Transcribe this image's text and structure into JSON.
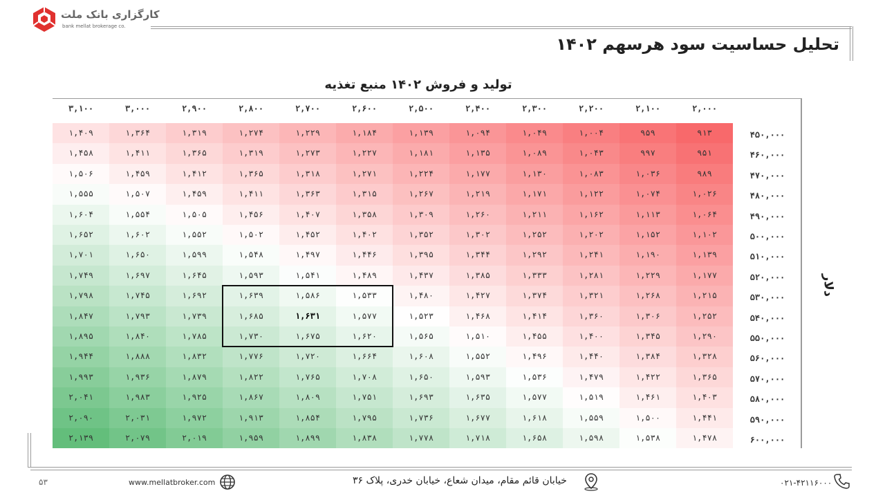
{
  "brand": {
    "name_fa": "کارگزاری بانک ملت",
    "name_en": "bank mellat brokerage co."
  },
  "page_title": "تحلیل حساسیت سود هرسهم ۱۴۰۲",
  "table_title": "تولید و فروش ۱۴۰۲ منبع تغذیه",
  "axis_label": "دلار",
  "columns": [
    "۲,۰۰۰",
    "۲,۱۰۰",
    "۲,۲۰۰",
    "۲,۳۰۰",
    "۲,۴۰۰",
    "۲,۵۰۰",
    "۲,۶۰۰",
    "۲,۷۰۰",
    "۲,۸۰۰",
    "۲,۹۰۰",
    "۳,۰۰۰",
    "۳,۱۰۰"
  ],
  "rows": [
    "۴۵۰,۰۰۰",
    "۴۶۰,۰۰۰",
    "۴۷۰,۰۰۰",
    "۴۸۰,۰۰۰",
    "۴۹۰,۰۰۰",
    "۵۰۰,۰۰۰",
    "۵۱۰,۰۰۰",
    "۵۲۰,۰۰۰",
    "۵۳۰,۰۰۰",
    "۵۴۰,۰۰۰",
    "۵۵۰,۰۰۰",
    "۵۶۰,۰۰۰",
    "۵۷۰,۰۰۰",
    "۵۸۰,۰۰۰",
    "۵۹۰,۰۰۰",
    "۶۰۰,۰۰۰"
  ],
  "values": [
    [
      "۹۱۳",
      "۹۵۹",
      "۱,۰۰۴",
      "۱,۰۴۹",
      "۱,۰۹۴",
      "۱,۱۳۹",
      "۱,۱۸۴",
      "۱,۲۲۹",
      "۱,۲۷۴",
      "۱,۳۱۹",
      "۱,۳۶۴",
      "۱,۴۰۹"
    ],
    [
      "۹۵۱",
      "۹۹۷",
      "۱,۰۴۳",
      "۱,۰۸۹",
      "۱,۱۳۵",
      "۱,۱۸۱",
      "۱,۲۲۷",
      "۱,۲۷۳",
      "۱,۳۱۹",
      "۱,۳۶۵",
      "۱,۴۱۱",
      "۱,۴۵۸"
    ],
    [
      "۹۸۹",
      "۱,۰۳۶",
      "۱,۰۸۳",
      "۱,۱۳۰",
      "۱,۱۷۷",
      "۱,۲۲۴",
      "۱,۲۷۱",
      "۱,۳۱۸",
      "۱,۳۶۵",
      "۱,۴۱۲",
      "۱,۴۵۹",
      "۱,۵۰۶"
    ],
    [
      "۱,۰۲۶",
      "۱,۰۷۴",
      "۱,۱۲۲",
      "۱,۱۷۱",
      "۱,۲۱۹",
      "۱,۲۶۷",
      "۱,۳۱۵",
      "۱,۳۶۳",
      "۱,۴۱۱",
      "۱,۴۵۹",
      "۱,۵۰۷",
      "۱,۵۵۵"
    ],
    [
      "۱,۰۶۴",
      "۱,۱۱۳",
      "۱,۱۶۲",
      "۱,۲۱۱",
      "۱,۲۶۰",
      "۱,۳۰۹",
      "۱,۳۵۸",
      "۱,۴۰۷",
      "۱,۴۵۶",
      "۱,۵۰۵",
      "۱,۵۵۴",
      "۱,۶۰۴"
    ],
    [
      "۱,۱۰۲",
      "۱,۱۵۲",
      "۱,۲۰۲",
      "۱,۲۵۲",
      "۱,۳۰۲",
      "۱,۳۵۲",
      "۱,۴۰۲",
      "۱,۴۵۲",
      "۱,۵۰۲",
      "۱,۵۵۲",
      "۱,۶۰۲",
      "۱,۶۵۲"
    ],
    [
      "۱,۱۳۹",
      "۱,۱۹۰",
      "۱,۲۴۱",
      "۱,۲۹۲",
      "۱,۳۴۴",
      "۱,۳۹۵",
      "۱,۴۴۶",
      "۱,۴۹۷",
      "۱,۵۴۸",
      "۱,۵۹۹",
      "۱,۶۵۰",
      "۱,۷۰۱"
    ],
    [
      "۱,۱۷۷",
      "۱,۲۲۹",
      "۱,۲۸۱",
      "۱,۳۳۳",
      "۱,۳۸۵",
      "۱,۴۳۷",
      "۱,۴۸۹",
      "۱,۵۴۱",
      "۱,۵۹۳",
      "۱,۶۴۵",
      "۱,۶۹۷",
      "۱,۷۴۹"
    ],
    [
      "۱,۲۱۵",
      "۱,۲۶۸",
      "۱,۳۲۱",
      "۱,۳۷۴",
      "۱,۴۲۷",
      "۱,۴۸۰",
      "۱,۵۳۳",
      "۱,۵۸۶",
      "۱,۶۳۹",
      "۱,۶۹۲",
      "۱,۷۴۵",
      "۱,۷۹۸"
    ],
    [
      "۱,۲۵۲",
      "۱,۳۰۶",
      "۱,۳۶۰",
      "۱,۴۱۴",
      "۱,۴۶۸",
      "۱,۵۲۳",
      "۱,۵۷۷",
      "۱,۶۳۱",
      "۱,۶۸۵",
      "۱,۷۳۹",
      "۱,۷۹۳",
      "۱,۸۴۷"
    ],
    [
      "۱,۲۹۰",
      "۱,۳۴۵",
      "۱,۴۰۰",
      "۱,۴۵۵",
      "۱,۵۱۰",
      "۱,۵۶۵",
      "۱,۶۲۰",
      "۱,۶۷۵",
      "۱,۷۳۰",
      "۱,۷۸۵",
      "۱,۸۴۰",
      "۱,۸۹۵"
    ],
    [
      "۱,۳۲۸",
      "۱,۳۸۴",
      "۱,۴۴۰",
      "۱,۴۹۶",
      "۱,۵۵۲",
      "۱,۶۰۸",
      "۱,۶۶۴",
      "۱,۷۲۰",
      "۱,۷۷۶",
      "۱,۸۳۲",
      "۱,۸۸۸",
      "۱,۹۴۴"
    ],
    [
      "۱,۳۶۵",
      "۱,۴۲۲",
      "۱,۴۷۹",
      "۱,۵۳۶",
      "۱,۵۹۳",
      "۱,۶۵۰",
      "۱,۷۰۸",
      "۱,۷۶۵",
      "۱,۸۲۲",
      "۱,۸۷۹",
      "۱,۹۳۶",
      "۱,۹۹۳"
    ],
    [
      "۱,۴۰۳",
      "۱,۴۶۱",
      "۱,۵۱۹",
      "۱,۵۷۷",
      "۱,۶۳۵",
      "۱,۶۹۳",
      "۱,۷۵۱",
      "۱,۸۰۹",
      "۱,۸۶۷",
      "۱,۹۲۵",
      "۱,۹۸۳",
      "۲,۰۴۱"
    ],
    [
      "۱,۴۴۱",
      "۱,۵۰۰",
      "۱,۵۵۹",
      "۱,۶۱۸",
      "۱,۶۷۷",
      "۱,۷۳۶",
      "۱,۷۹۵",
      "۱,۸۵۴",
      "۱,۹۱۳",
      "۱,۹۷۲",
      "۲,۰۳۱",
      "۲,۰۹۰"
    ],
    [
      "۱,۴۷۸",
      "۱,۵۳۸",
      "۱,۵۹۸",
      "۱,۶۵۸",
      "۱,۷۱۸",
      "۱,۷۷۸",
      "۱,۸۳۸",
      "۱,۸۹۹",
      "۱,۹۵۹",
      "۲,۰۱۹",
      "۲,۰۷۹",
      "۲,۱۳۹"
    ]
  ],
  "numeric": {
    "columns": [
      2000,
      2100,
      2200,
      2300,
      2400,
      2500,
      2600,
      2700,
      2800,
      2900,
      3000,
      3100
    ],
    "rows": [
      450000,
      460000,
      470000,
      480000,
      490000,
      500000,
      510000,
      520000,
      530000,
      540000,
      550000,
      560000,
      570000,
      580000,
      590000,
      600000
    ],
    "min": 913,
    "max": 2139,
    "mid": 1526
  },
  "base_case": {
    "row": 9,
    "col": 7
  },
  "highlight": {
    "rows": [
      8,
      10
    ],
    "cols": [
      6,
      8
    ]
  },
  "colors": {
    "low": "#f8696b",
    "mid": "#ffffff",
    "high": "#63be7b",
    "frame": "#9a9a9a",
    "logo": "#e0312f"
  },
  "icons": {
    "globe": "globe-icon",
    "location": "location-pin-icon",
    "phone": "phone-icon",
    "logo": "logo-hexagon-icon"
  },
  "footer": {
    "page_number": "۵۳",
    "website": "www.mellatbroker.com",
    "address": "خیابان قائم مقام، میدان شعاع، خیابان خدری، پلاک ۳۶",
    "phone": "۰۲۱-۴۲۱۱۶۰۰۰"
  }
}
